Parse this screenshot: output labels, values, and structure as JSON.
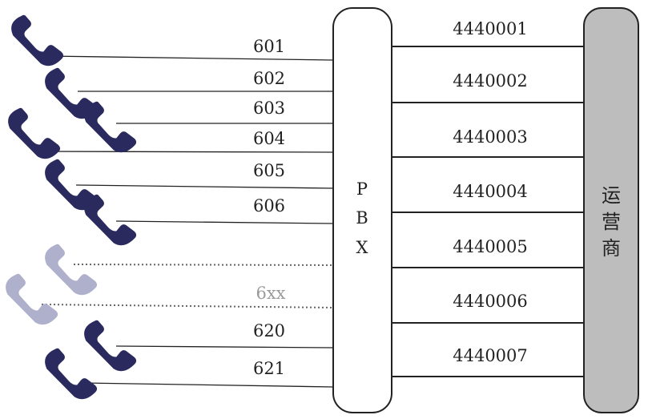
{
  "colors": {
    "phone_active": "#2b2a5e",
    "phone_inactive": "#aeb0cc",
    "line_active": "#222222",
    "line_inactive": "#666666",
    "carrier_fill": "#bdbdbd",
    "pbx_fill": "#ffffff"
  },
  "pbx": {
    "letters": [
      "P",
      "B",
      "X"
    ]
  },
  "carrier": {
    "chars": [
      "运",
      "营",
      "商"
    ]
  },
  "extensions": [
    {
      "label": "601",
      "active": true
    },
    {
      "label": "602",
      "active": true
    },
    {
      "label": "603",
      "active": true
    },
    {
      "label": "604",
      "active": true
    },
    {
      "label": "605",
      "active": true
    },
    {
      "label": "606",
      "active": true
    },
    {
      "label": "",
      "active": false
    },
    {
      "label": "6xx",
      "active": false
    },
    {
      "label": "620",
      "active": true
    },
    {
      "label": "621",
      "active": true
    }
  ],
  "trunks": [
    "4440001",
    "4440002",
    "4440003",
    "4440004",
    "4440005",
    "4440006",
    "4440007"
  ],
  "phones": [
    {
      "active": true,
      "icon": "phone-handset-icon"
    },
    {
      "active": true,
      "icon": "phone-handset-icon"
    },
    {
      "active": true,
      "icon": "phone-handset-icon"
    },
    {
      "active": true,
      "icon": "phone-handset-icon"
    },
    {
      "active": true,
      "icon": "phone-handset-icon"
    },
    {
      "active": true,
      "icon": "phone-handset-icon"
    },
    {
      "active": false,
      "icon": "phone-handset-icon"
    },
    {
      "active": false,
      "icon": "phone-handset-icon"
    },
    {
      "active": true,
      "icon": "phone-handset-icon"
    },
    {
      "active": true,
      "icon": "phone-handset-icon"
    }
  ]
}
